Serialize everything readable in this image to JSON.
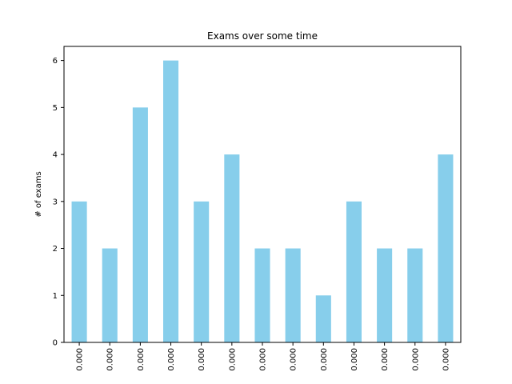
{
  "chart_data": {
    "type": "bar",
    "title": "Exams over some time",
    "xlabel": "",
    "ylabel": "# of exams",
    "categories": [
      "0.000",
      "0.000",
      "0.000",
      "0.000",
      "0.000",
      "0.000",
      "0.000",
      "0.000",
      "0.000",
      "0.000",
      "0.000",
      "0.000",
      "0.000"
    ],
    "values": [
      3,
      2,
      5,
      6,
      3,
      4,
      2,
      2,
      1,
      3,
      2,
      2,
      4
    ],
    "ylim": [
      0,
      6.3
    ],
    "yticks": [
      0,
      1,
      2,
      3,
      4,
      5,
      6
    ],
    "bar_color": "#87ceeb",
    "grid": false,
    "legend": false
  }
}
